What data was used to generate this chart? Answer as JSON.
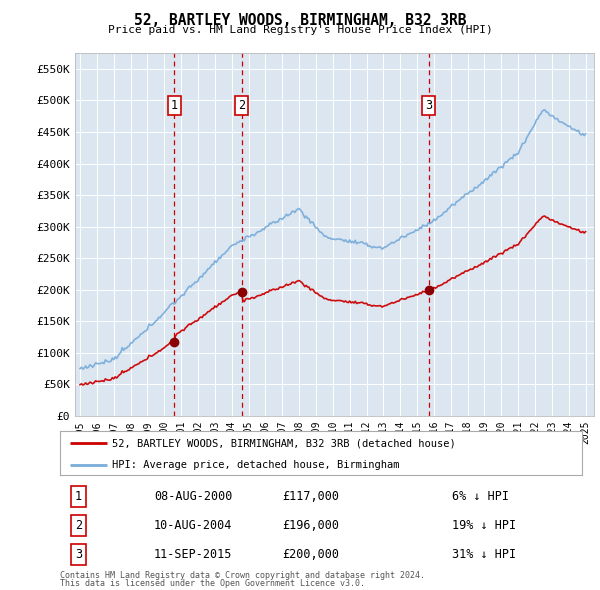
{
  "title": "52, BARTLEY WOODS, BIRMINGHAM, B32 3RB",
  "subtitle": "Price paid vs. HM Land Registry's House Price Index (HPI)",
  "background_color": "#ffffff",
  "plot_bg_color": "#dce6f1",
  "grid_color": "#ffffff",
  "ylim": [
    0,
    575000
  ],
  "yticks": [
    0,
    50000,
    100000,
    150000,
    200000,
    250000,
    300000,
    350000,
    400000,
    450000,
    500000,
    550000
  ],
  "ytick_labels": [
    "£0",
    "£50K",
    "£100K",
    "£150K",
    "£200K",
    "£250K",
    "£300K",
    "£350K",
    "£400K",
    "£450K",
    "£500K",
    "£550K"
  ],
  "sale_color": "#cc0000",
  "hpi_color": "#7aaddb",
  "marker_color": "#8b0000",
  "vline_color": "#cc0000",
  "sales": [
    {
      "date_num": 2000.6,
      "price": 117000,
      "label": "1"
    },
    {
      "date_num": 2004.6,
      "price": 196000,
      "label": "2"
    },
    {
      "date_num": 2015.7,
      "price": 200000,
      "label": "3"
    }
  ],
  "sale_table": [
    {
      "num": "1",
      "date": "08-AUG-2000",
      "price": "£117,000",
      "note": "6% ↓ HPI"
    },
    {
      "num": "2",
      "date": "10-AUG-2004",
      "price": "£196,000",
      "note": "19% ↓ HPI"
    },
    {
      "num": "3",
      "date": "11-SEP-2015",
      "price": "£200,000",
      "note": "31% ↓ HPI"
    }
  ],
  "footnote1": "Contains HM Land Registry data © Crown copyright and database right 2024.",
  "footnote2": "This data is licensed under the Open Government Licence v3.0.",
  "legend_line1": "52, BARTLEY WOODS, BIRMINGHAM, B32 3RB (detached house)",
  "legend_line2": "HPI: Average price, detached house, Birmingham"
}
